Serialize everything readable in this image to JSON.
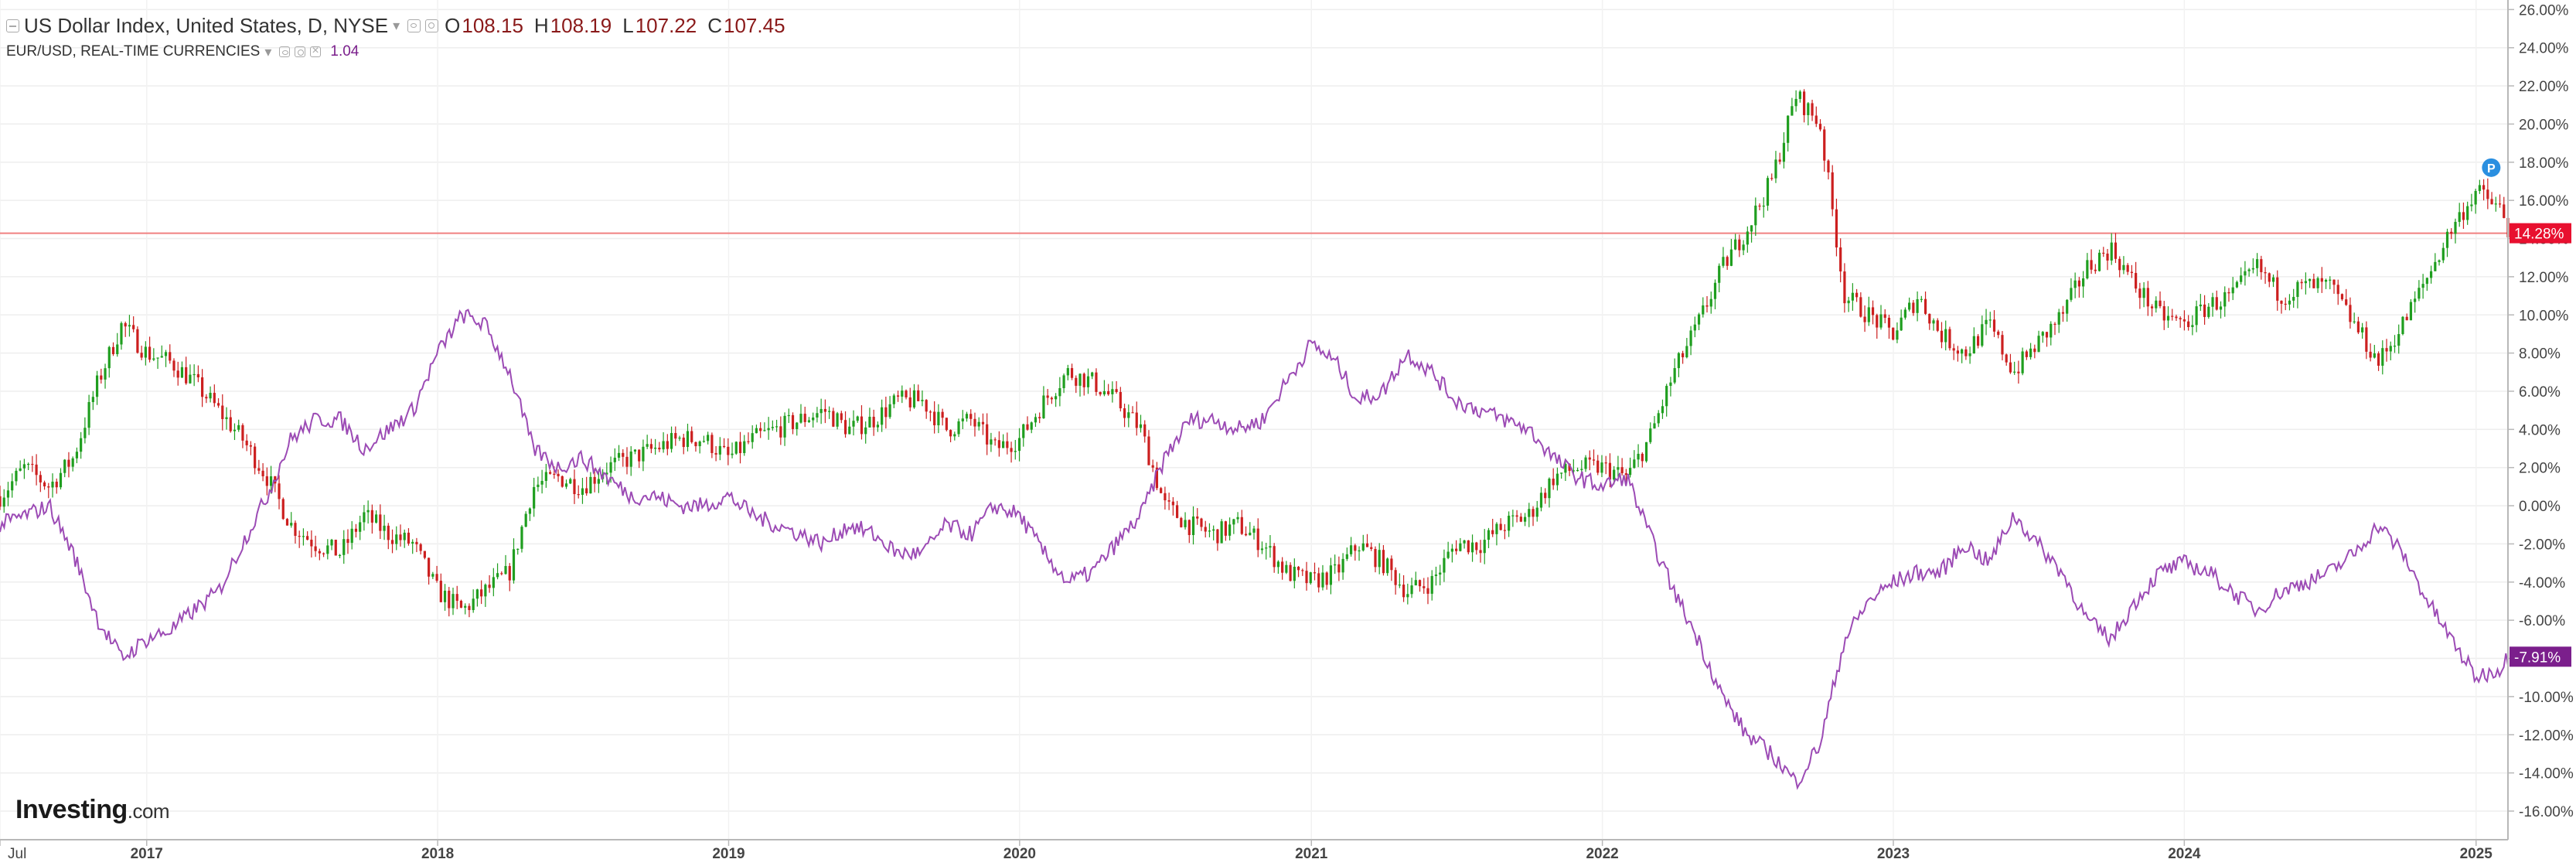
{
  "legend": {
    "title": "US Dollar Index, United States, D, NYSE",
    "open_label": "O",
    "open": "108.15",
    "high_label": "H",
    "high": "108.19",
    "low_label": "L",
    "low": "107.22",
    "close_label": "C",
    "close": "107.45",
    "second_title": "EUR/USD, REAL-TIME CURRENCIES",
    "second_value": "1.04"
  },
  "logo": {
    "brand": "Investing",
    "suffix": ".com"
  },
  "chart_data": {
    "type": "line",
    "x_axis": {
      "range": [
        "2016-07-01",
        "2025-02-10"
      ],
      "ticks": [
        "Jul",
        "2017",
        "2018",
        "2019",
        "2020",
        "2021",
        "2022",
        "2023",
        "2024",
        "2025"
      ],
      "tick_dates": [
        "2016-07-01",
        "2017-01-01",
        "2018-01-01",
        "2019-01-01",
        "2020-01-01",
        "2021-01-01",
        "2022-01-01",
        "2023-01-01",
        "2024-01-01",
        "2025-01-01"
      ]
    },
    "y_axis": {
      "range": [
        -17.5,
        26.5
      ],
      "ticks": [
        "26.00%",
        "24.00%",
        "22.00%",
        "20.00%",
        "18.00%",
        "16.00%",
        "14.00%",
        "12.00%",
        "10.00%",
        "8.00%",
        "6.00%",
        "4.00%",
        "2.00%",
        "0.00%",
        "-2.00%",
        "-4.00%",
        "-6.00%",
        "-8.00%",
        "-10.00%",
        "-12.00%",
        "-14.00%",
        "-16.00%"
      ],
      "tick_values": [
        26,
        24,
        22,
        20,
        18,
        16,
        14,
        12,
        10,
        8,
        6,
        4,
        2,
        0,
        -2,
        -4,
        -6,
        -8,
        -10,
        -12,
        -14,
        -16
      ]
    },
    "grid": true,
    "series": [
      {
        "name": "US Dollar Index",
        "style": "candlestick",
        "up_color": "#1f9e1f",
        "down_color": "#cc1f1f",
        "last_label": "14.28%",
        "last_value": 14.28,
        "label_color": "#e8102f",
        "marker": "P",
        "marker_color": "#2a8fe0",
        "x": [
          "2016-07-01",
          "2016-08-01",
          "2016-09-01",
          "2016-10-01",
          "2016-11-01",
          "2016-12-01",
          "2017-01-01",
          "2017-02-01",
          "2017-03-01",
          "2017-04-01",
          "2017-05-01",
          "2017-06-01",
          "2017-07-01",
          "2017-08-01",
          "2017-09-01",
          "2017-10-01",
          "2017-11-01",
          "2017-12-01",
          "2018-01-01",
          "2018-02-01",
          "2018-03-01",
          "2018-04-01",
          "2018-05-01",
          "2018-06-01",
          "2018-07-01",
          "2018-08-01",
          "2018-09-01",
          "2018-10-01",
          "2018-11-01",
          "2018-12-01",
          "2019-01-01",
          "2019-02-01",
          "2019-03-01",
          "2019-04-01",
          "2019-05-01",
          "2019-06-01",
          "2019-07-01",
          "2019-08-01",
          "2019-09-01",
          "2019-10-01",
          "2019-11-01",
          "2019-12-01",
          "2020-01-01",
          "2020-02-01",
          "2020-03-01",
          "2020-04-01",
          "2020-05-01",
          "2020-06-01",
          "2020-07-01",
          "2020-08-01",
          "2020-09-01",
          "2020-10-01",
          "2020-11-01",
          "2020-12-01",
          "2021-01-01",
          "2021-02-01",
          "2021-03-01",
          "2021-04-01",
          "2021-05-01",
          "2021-06-01",
          "2021-07-01",
          "2021-08-01",
          "2021-09-01",
          "2021-10-01",
          "2021-11-01",
          "2021-12-01",
          "2022-01-01",
          "2022-02-01",
          "2022-03-01",
          "2022-04-01",
          "2022-05-01",
          "2022-06-01",
          "2022-07-01",
          "2022-08-01",
          "2022-09-01",
          "2022-10-01",
          "2022-11-01",
          "2022-12-01",
          "2023-01-01",
          "2023-02-01",
          "2023-03-01",
          "2023-04-01",
          "2023-05-01",
          "2023-06-01",
          "2023-07-01",
          "2023-08-01",
          "2023-09-01",
          "2023-10-01",
          "2023-11-01",
          "2023-12-01",
          "2024-01-01",
          "2024-02-01",
          "2024-03-01",
          "2024-04-01",
          "2024-05-01",
          "2024-06-01",
          "2024-07-01",
          "2024-08-01",
          "2024-09-01",
          "2024-10-01",
          "2024-11-01",
          "2024-12-01",
          "2025-01-01",
          "2025-02-01",
          "2025-02-10"
        ],
        "y": [
          0.5,
          2.0,
          1.0,
          2.5,
          6.5,
          9.5,
          8.0,
          7.5,
          6.5,
          5.0,
          3.5,
          1.5,
          -1.0,
          -2.0,
          -2.5,
          -0.5,
          -1.5,
          -2.0,
          -4.5,
          -5.5,
          -4.5,
          -3.5,
          1.0,
          1.5,
          1.0,
          2.0,
          2.5,
          3.0,
          3.5,
          3.5,
          2.5,
          3.5,
          4.0,
          4.5,
          5.0,
          4.0,
          4.5,
          5.5,
          5.5,
          4.0,
          4.5,
          3.0,
          3.5,
          5.5,
          7.0,
          6.5,
          5.5,
          4.0,
          0.0,
          -1.0,
          -1.5,
          -1.0,
          -2.0,
          -3.5,
          -4.0,
          -3.5,
          -2.0,
          -3.0,
          -4.5,
          -4.0,
          -2.0,
          -2.0,
          -1.0,
          -0.5,
          1.5,
          2.0,
          2.0,
          1.5,
          3.5,
          7.0,
          9.5,
          12.5,
          14.5,
          17.0,
          21.5,
          20.0,
          11.0,
          10.0,
          9.0,
          11.0,
          9.0,
          8.0,
          9.5,
          7.0,
          8.5,
          10.0,
          12.5,
          13.5,
          11.5,
          10.0,
          9.5,
          10.5,
          11.0,
          12.5,
          11.0,
          11.5,
          11.5,
          9.5,
          7.5,
          9.5,
          12.0,
          14.5,
          16.5,
          15.5,
          14.28
        ]
      },
      {
        "name": "EUR/USD",
        "style": "line",
        "color": "#9c4bb5",
        "last_label": "-7.91%",
        "last_value": -7.91,
        "label_color": "#7b1f8c",
        "x": [
          "2016-07-01",
          "2016-08-01",
          "2016-09-01",
          "2016-10-01",
          "2016-11-01",
          "2016-12-01",
          "2017-01-01",
          "2017-02-01",
          "2017-03-01",
          "2017-04-01",
          "2017-05-01",
          "2017-06-01",
          "2017-07-01",
          "2017-08-01",
          "2017-09-01",
          "2017-10-01",
          "2017-11-01",
          "2017-12-01",
          "2018-01-01",
          "2018-02-01",
          "2018-03-01",
          "2018-04-01",
          "2018-05-01",
          "2018-06-01",
          "2018-07-01",
          "2018-08-01",
          "2018-09-01",
          "2018-10-01",
          "2018-11-01",
          "2018-12-01",
          "2019-01-01",
          "2019-02-01",
          "2019-03-01",
          "2019-04-01",
          "2019-05-01",
          "2019-06-01",
          "2019-07-01",
          "2019-08-01",
          "2019-09-01",
          "2019-10-01",
          "2019-11-01",
          "2019-12-01",
          "2020-01-01",
          "2020-02-01",
          "2020-03-01",
          "2020-04-01",
          "2020-05-01",
          "2020-06-01",
          "2020-07-01",
          "2020-08-01",
          "2020-09-01",
          "2020-10-01",
          "2020-11-01",
          "2020-12-01",
          "2021-01-01",
          "2021-02-01",
          "2021-03-01",
          "2021-04-01",
          "2021-05-01",
          "2021-06-01",
          "2021-07-01",
          "2021-08-01",
          "2021-09-01",
          "2021-10-01",
          "2021-11-01",
          "2021-12-01",
          "2022-01-01",
          "2022-02-01",
          "2022-03-01",
          "2022-04-01",
          "2022-05-01",
          "2022-06-01",
          "2022-07-01",
          "2022-08-01",
          "2022-09-01",
          "2022-10-01",
          "2022-11-01",
          "2022-12-01",
          "2023-01-01",
          "2023-02-01",
          "2023-03-01",
          "2023-04-01",
          "2023-05-01",
          "2023-06-01",
          "2023-07-01",
          "2023-08-01",
          "2023-09-01",
          "2023-10-01",
          "2023-11-01",
          "2023-12-01",
          "2024-01-01",
          "2024-02-01",
          "2024-03-01",
          "2024-04-01",
          "2024-05-01",
          "2024-06-01",
          "2024-07-01",
          "2024-08-01",
          "2024-09-01",
          "2024-10-01",
          "2024-11-01",
          "2024-12-01",
          "2025-01-01",
          "2025-02-01",
          "2025-02-10"
        ],
        "y": [
          -1.0,
          -0.5,
          0.0,
          -2.5,
          -6.0,
          -8.0,
          -7.0,
          -6.5,
          -5.5,
          -4.5,
          -2.0,
          0.5,
          3.5,
          4.5,
          4.5,
          3.0,
          4.0,
          5.0,
          8.0,
          10.0,
          9.5,
          7.0,
          3.0,
          2.0,
          2.5,
          1.5,
          0.5,
          0.5,
          0.0,
          0.0,
          0.5,
          -0.5,
          -1.0,
          -1.5,
          -2.0,
          -1.0,
          -1.5,
          -2.5,
          -2.5,
          -1.0,
          -1.5,
          0.0,
          -0.5,
          -2.5,
          -4.0,
          -3.5,
          -2.0,
          -0.5,
          2.5,
          4.5,
          4.5,
          4.0,
          4.5,
          6.5,
          8.5,
          7.5,
          5.5,
          6.0,
          8.0,
          7.0,
          5.5,
          5.0,
          4.5,
          4.0,
          2.5,
          1.5,
          1.0,
          1.5,
          -1.5,
          -4.5,
          -7.0,
          -10.0,
          -12.0,
          -13.0,
          -14.5,
          -12.5,
          -7.0,
          -5.0,
          -4.0,
          -3.5,
          -3.5,
          -2.0,
          -3.0,
          -0.5,
          -2.0,
          -3.5,
          -6.0,
          -7.0,
          -5.0,
          -3.5,
          -3.0,
          -3.5,
          -4.5,
          -5.5,
          -4.5,
          -4.0,
          -3.5,
          -2.5,
          -1.0,
          -2.5,
          -5.0,
          -7.0,
          -9.0,
          -8.5,
          -7.91
        ]
      }
    ],
    "horizontal_line": {
      "value": 14.28,
      "color": "#f08080"
    }
  }
}
